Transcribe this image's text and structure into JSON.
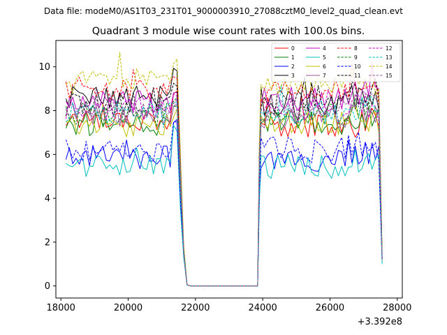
{
  "header": {
    "data_file": "Data file: modeM0/AS1T03_231T01_9000003910_27088cztM0_level2_quad_clean.evt"
  },
  "chart_data": {
    "type": "line",
    "title": "Quadrant 3 module wise count rates with 100.0s bins.",
    "xlabel": "",
    "ylabel": "",
    "x_offset_label": "+3.392e8",
    "xlim": [
      17850,
      28150
    ],
    "ylim": [
      -0.55,
      11.2
    ],
    "xticks": [
      18000,
      20000,
      22000,
      24000,
      26000,
      28000
    ],
    "xtick_labels": [
      "18000",
      "20000",
      "22000",
      "24000",
      "26000",
      "28000"
    ],
    "yticks": [
      0,
      2,
      4,
      6,
      8,
      10
    ],
    "ytick_labels": [
      "0",
      "2",
      "4",
      "6",
      "8",
      "10"
    ],
    "legend_location": "upper-right",
    "segments": [
      {
        "start": 18150,
        "end": 21450
      },
      {
        "start": 23950,
        "end": 27550
      }
    ],
    "gap": {
      "edge_start": 21650,
      "zero_start": 21850,
      "zero_end": 23850
    },
    "series": [
      {
        "name": "0",
        "color": "#ff0000",
        "dashed": false,
        "level": 7.6,
        "level2": 7.3,
        "peak": 9.0,
        "tail": 1.1
      },
      {
        "name": "1",
        "color": "#008000",
        "dashed": false,
        "level": 7.4,
        "level2": 7.5,
        "peak": 8.4,
        "tail": 1.2
      },
      {
        "name": "2",
        "color": "#0000ff",
        "dashed": false,
        "level": 5.9,
        "level2": 5.8,
        "peak": 7.6,
        "tail": 1.2
      },
      {
        "name": "3",
        "color": "#000000",
        "dashed": false,
        "level": 8.6,
        "level2": 8.3,
        "peak": 10.1,
        "tail": 1.4
      },
      {
        "name": "4",
        "color": "#c000c0",
        "dashed": false,
        "level": 8.4,
        "level2": 8.5,
        "peak": 9.0,
        "tail": 1.3
      },
      {
        "name": "5",
        "color": "#00bfbf",
        "dashed": false,
        "level": 5.5,
        "level2": 5.4,
        "peak": 7.4,
        "tail": 1.0
      },
      {
        "name": "6",
        "color": "#bfbf00",
        "dashed": false,
        "level": 7.3,
        "level2": 7.4,
        "peak": 8.1,
        "tail": 1.2
      },
      {
        "name": "7",
        "color": "#9a5aa0",
        "dashed": false,
        "level": 7.8,
        "level2": 7.7,
        "peak": 8.5,
        "tail": 1.3
      },
      {
        "name": "8",
        "color": "#ff0000",
        "dashed": true,
        "level": 9.0,
        "level2": 8.9,
        "peak": 9.6,
        "tail": 1.5
      },
      {
        "name": "9",
        "color": "#008000",
        "dashed": true,
        "level": 7.8,
        "level2": 7.8,
        "peak": 8.6,
        "tail": 1.3
      },
      {
        "name": "10",
        "color": "#0000ff",
        "dashed": true,
        "level": 6.2,
        "level2": 6.2,
        "peak": 7.8,
        "tail": 1.2
      },
      {
        "name": "11",
        "color": "#000000",
        "dashed": true,
        "level": 8.3,
        "level2": 8.4,
        "peak": 9.4,
        "tail": 1.4
      },
      {
        "name": "12",
        "color": "#c000c0",
        "dashed": true,
        "level": 8.1,
        "level2": 8.0,
        "peak": 8.9,
        "tail": 1.3
      },
      {
        "name": "13",
        "color": "#00bfbf",
        "dashed": true,
        "level": 7.9,
        "level2": 7.9,
        "peak": 8.7,
        "tail": 1.3
      },
      {
        "name": "14",
        "color": "#bfbf00",
        "dashed": true,
        "level": 9.5,
        "level2": 9.3,
        "peak": 10.4,
        "tail": 1.6
      },
      {
        "name": "15",
        "color": "#9a5aa0",
        "dashed": true,
        "level": 8.0,
        "level2": 8.1,
        "peak": 8.6,
        "tail": 1.3
      }
    ]
  }
}
